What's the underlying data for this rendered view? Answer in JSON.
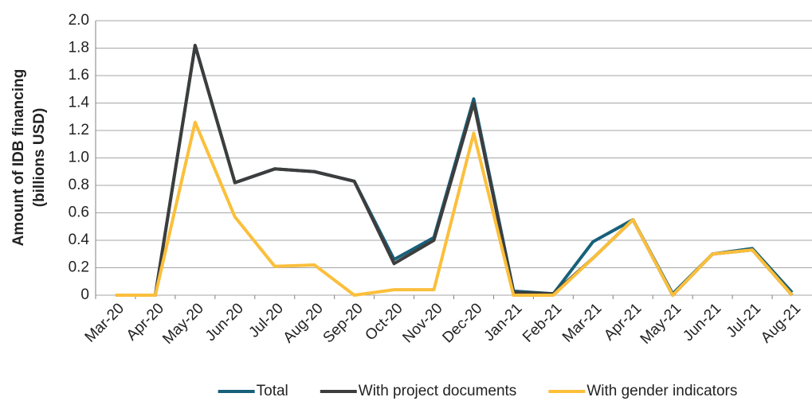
{
  "chart_data": {
    "type": "line",
    "ylabel": [
      "Amount of IDB financing",
      "(billions USD)"
    ],
    "categories": [
      "Mar-20",
      "Apr-20",
      "May-20",
      "Jun-20",
      "Jul-20",
      "Aug-20",
      "Sep-20",
      "Oct-20",
      "Nov-20",
      "Dec-20",
      "Jan-21",
      "Feb-21",
      "Mar-21",
      "Apr-21",
      "May-21",
      "Jun-21",
      "Jul-21",
      "Aug-21"
    ],
    "series": [
      {
        "name": "Total",
        "color": "#17607a",
        "values": [
          0,
          0,
          1.82,
          0.82,
          0.92,
          0.9,
          0.83,
          0.26,
          0.42,
          1.43,
          0.03,
          0.01,
          0.39,
          0.55,
          0.01,
          0.3,
          0.34,
          0.02
        ]
      },
      {
        "name": "With project documents",
        "color": "#3d3d3d",
        "values": [
          0,
          0,
          1.82,
          0.82,
          0.92,
          0.9,
          0.83,
          0.23,
          0.4,
          1.4,
          0.02,
          0.01,
          0.27,
          0.55,
          0,
          0.3,
          0.33,
          0
        ]
      },
      {
        "name": "With gender indicators",
        "color": "#fbbf3b",
        "values": [
          0,
          0,
          1.26,
          0.57,
          0.21,
          0.22,
          0,
          0.04,
          0.04,
          1.18,
          0,
          0,
          0.27,
          0.55,
          0,
          0.3,
          0.33,
          0
        ]
      }
    ],
    "ylim": [
      0,
      2
    ],
    "yticks": [
      0,
      0.2,
      0.4,
      0.6,
      0.8,
      {
        "value": 1,
        "label": "1.0"
      },
      1.2,
      1.4,
      1.6,
      1.8,
      {
        "value": 2,
        "label": "2.0"
      }
    ],
    "grid": true
  }
}
